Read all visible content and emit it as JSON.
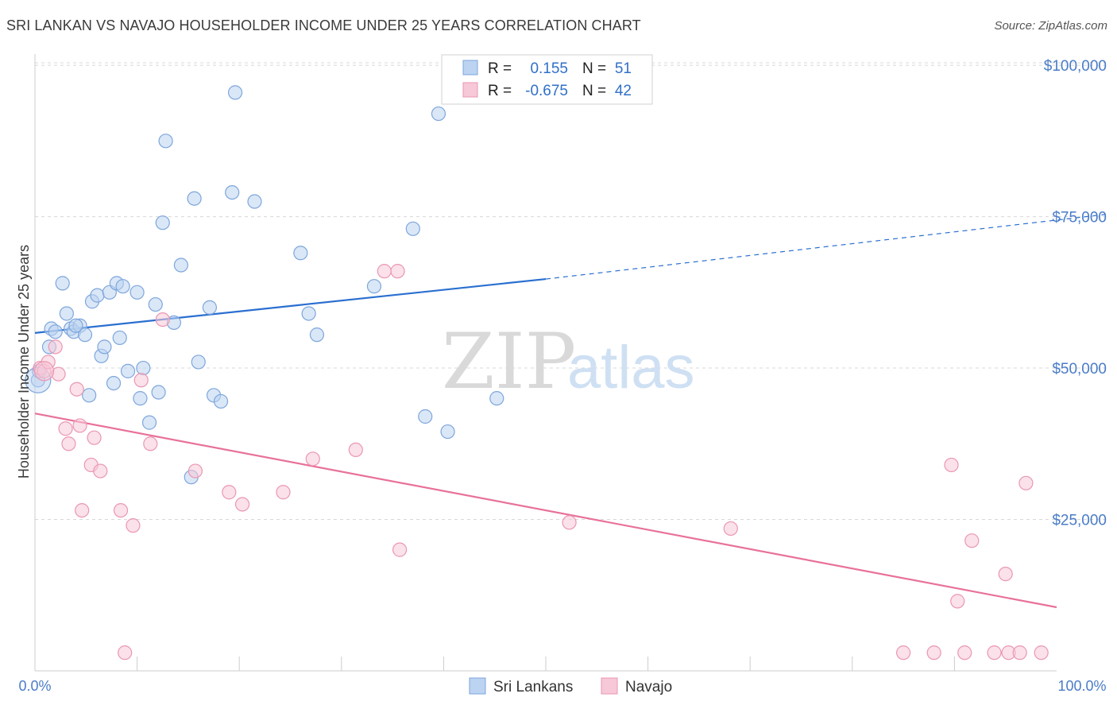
{
  "title": "SRI LANKAN VS NAVAJO HOUSEHOLDER INCOME UNDER 25 YEARS CORRELATION CHART",
  "source": "Source: ZipAtlas.com",
  "watermark": {
    "zip": "ZIP",
    "atlas": "atlas"
  },
  "legend_box": {
    "row1": {
      "r_label": "R =",
      "r_value": "0.155",
      "n_label": "N =",
      "n_value": "51"
    },
    "row2": {
      "r_label": "R =",
      "r_value": "-0.675",
      "n_label": "N =",
      "n_value": "42"
    }
  },
  "bottom_legend": {
    "series1": "Sri Lankans",
    "series2": "Navajo"
  },
  "colors": {
    "blue_fill": "#bcd3f1",
    "blue_stroke": "#7ea6dc",
    "blue_line": "#2a6fd0",
    "pink_fill": "#f7c8d7",
    "pink_stroke": "#ea97b2",
    "pink_line": "#e8719a",
    "grid": "#d8d8d8",
    "tick_text": "#4a7cc8"
  },
  "chart_data": {
    "type": "scatter",
    "title": "SRI LANKAN VS NAVAJO HOUSEHOLDER INCOME UNDER 25 YEARS CORRELATION CHART",
    "xlabel": "",
    "ylabel": "Householder Income Under 25 years",
    "xlim": [
      0,
      100
    ],
    "ylim": [
      0,
      105000
    ],
    "x_tick_labels": [
      "0.0%",
      "100.0%"
    ],
    "y_ticks": [
      25000,
      50000,
      75000,
      100000
    ],
    "y_tick_labels": [
      "$25,000",
      "$50,000",
      "$75,000",
      "$100,000"
    ],
    "grid": true,
    "legend": "top-center",
    "series": [
      {
        "name": "Sri Lankans",
        "color": "#7ea6dc",
        "points": [
          [
            0.3,
            48000
          ],
          [
            0.4,
            49500
          ],
          [
            1.4,
            53500
          ],
          [
            1.6,
            56500
          ],
          [
            2.0,
            56000
          ],
          [
            2.7,
            64000
          ],
          [
            3.1,
            59000
          ],
          [
            3.5,
            56500
          ],
          [
            3.8,
            56000
          ],
          [
            4.4,
            57000
          ],
          [
            4.9,
            55500
          ],
          [
            5.3,
            45500
          ],
          [
            5.6,
            61000
          ],
          [
            6.1,
            62000
          ],
          [
            6.5,
            52000
          ],
          [
            6.8,
            53500
          ],
          [
            7.3,
            62500
          ],
          [
            7.7,
            47500
          ],
          [
            8.0,
            64000
          ],
          [
            8.3,
            55000
          ],
          [
            8.6,
            63500
          ],
          [
            9.1,
            49500
          ],
          [
            10.0,
            62500
          ],
          [
            10.3,
            45000
          ],
          [
            10.6,
            50000
          ],
          [
            11.2,
            41000
          ],
          [
            11.8,
            60500
          ],
          [
            12.1,
            46000
          ],
          [
            12.5,
            74000
          ],
          [
            12.8,
            87500
          ],
          [
            13.6,
            57500
          ],
          [
            14.3,
            67000
          ],
          [
            15.6,
            78000
          ],
          [
            16.0,
            51000
          ],
          [
            17.1,
            60000
          ],
          [
            17.5,
            45500
          ],
          [
            18.2,
            44500
          ],
          [
            19.3,
            79000
          ],
          [
            19.6,
            95500
          ],
          [
            21.5,
            77500
          ],
          [
            26.0,
            69000
          ],
          [
            26.8,
            59000
          ],
          [
            27.6,
            55500
          ],
          [
            33.2,
            63500
          ],
          [
            37.0,
            73000
          ],
          [
            38.2,
            42000
          ],
          [
            39.5,
            92000
          ],
          [
            40.4,
            39500
          ],
          [
            45.2,
            45000
          ],
          [
            15.3,
            32000
          ],
          [
            4.0,
            57000
          ]
        ]
      },
      {
        "name": "Navajo",
        "color": "#ea97b2",
        "points": [
          [
            0.5,
            50000
          ],
          [
            0.9,
            49500
          ],
          [
            1.3,
            51000
          ],
          [
            2.0,
            53500
          ],
          [
            2.3,
            49000
          ],
          [
            3.0,
            40000
          ],
          [
            3.3,
            37500
          ],
          [
            4.1,
            46500
          ],
          [
            4.4,
            40500
          ],
          [
            4.6,
            26500
          ],
          [
            5.5,
            34000
          ],
          [
            5.8,
            38500
          ],
          [
            6.4,
            33000
          ],
          [
            8.4,
            26500
          ],
          [
            8.8,
            3000
          ],
          [
            9.6,
            24000
          ],
          [
            10.4,
            48000
          ],
          [
            11.3,
            37500
          ],
          [
            12.5,
            58000
          ],
          [
            15.7,
            33000
          ],
          [
            19.0,
            29500
          ],
          [
            20.3,
            27500
          ],
          [
            24.3,
            29500
          ],
          [
            27.2,
            35000
          ],
          [
            31.4,
            36500
          ],
          [
            34.2,
            66000
          ],
          [
            35.5,
            66000
          ],
          [
            35.7,
            20000
          ],
          [
            52.3,
            24500
          ],
          [
            68.1,
            23500
          ],
          [
            85.0,
            3000
          ],
          [
            88.0,
            3000
          ],
          [
            89.7,
            34000
          ],
          [
            90.3,
            11500
          ],
          [
            91.0,
            3000
          ],
          [
            91.7,
            21500
          ],
          [
            93.9,
            3000
          ],
          [
            95.0,
            16000
          ],
          [
            95.3,
            3000
          ],
          [
            96.4,
            3000
          ],
          [
            97.0,
            31000
          ],
          [
            98.5,
            3000
          ]
        ]
      }
    ],
    "trend_lines": [
      {
        "series": "Sri Lankans",
        "x": [
          0,
          50
        ],
        "y": [
          55800,
          64700
        ],
        "dashed_extension_to_x": 100,
        "dashed_end_y": 73800
      },
      {
        "series": "Navajo",
        "x": [
          0,
          100
        ],
        "y": [
          42500,
          10500
        ]
      }
    ]
  }
}
